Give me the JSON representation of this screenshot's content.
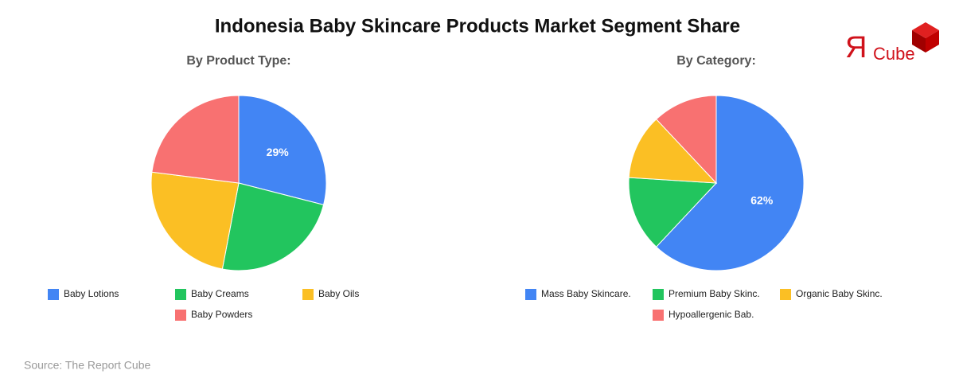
{
  "title": "Indonesia Baby Skincare Products Market Segment Share",
  "source": "Source: The Report Cube",
  "logo": {
    "mark": "Я",
    "text": "Cube"
  },
  "chart_data": [
    {
      "type": "pie",
      "title": "By Product Type:",
      "categories": [
        "Baby Lotions",
        "Baby Creams",
        "Baby Oils",
        "Baby Powders"
      ],
      "values": [
        29,
        24,
        24,
        23
      ],
      "value_labels": [
        "29%",
        null,
        null,
        null
      ],
      "colors": [
        "#4285f4",
        "#22c55e",
        "#fbbf24",
        "#f87171"
      ]
    },
    {
      "type": "pie",
      "title": "By Category:",
      "categories": [
        "Mass Baby Skincare.",
        "Premium Baby Skinc.",
        "Organic Baby Skinc.",
        "Hypoallergenic Bab."
      ],
      "values": [
        62,
        14,
        12,
        12
      ],
      "value_labels": [
        "62%",
        null,
        null,
        null
      ],
      "colors": [
        "#4285f4",
        "#22c55e",
        "#fbbf24",
        "#f87171"
      ]
    }
  ]
}
